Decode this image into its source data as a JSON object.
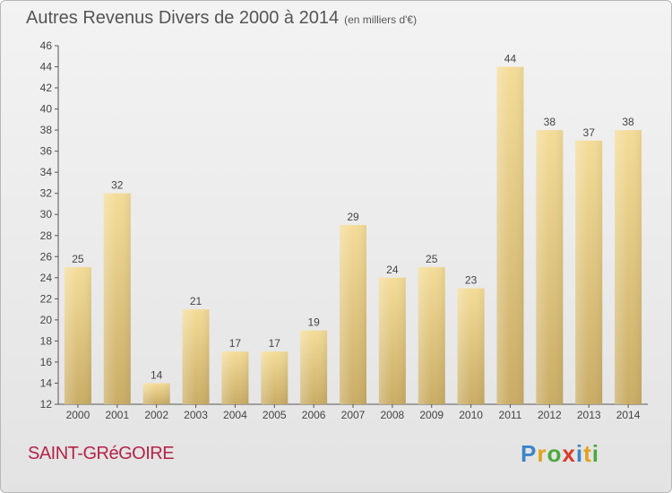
{
  "title": {
    "main": "Autres Revenus Divers de 2000 à 2014",
    "sub": "(en milliers d'€)"
  },
  "town": "SAINT-GRéGOIRE",
  "logo": {
    "text": "Proxiti",
    "letters": [
      {
        "ch": "P",
        "color": "#3a86c8"
      },
      {
        "ch": "r",
        "color": "#e2a21b"
      },
      {
        "ch": "o",
        "color": "#4aa93c"
      },
      {
        "ch": "x",
        "color": "#d93b2b"
      },
      {
        "ch": "i",
        "color": "#3a86c8"
      },
      {
        "ch": "t",
        "color": "#e2a21b"
      },
      {
        "ch": "i",
        "color": "#4aa93c"
      }
    ]
  },
  "chart_data": {
    "type": "bar",
    "title": "Autres Revenus Divers de 2000 à 2014",
    "subtitle": "(en milliers d'€)",
    "categories": [
      "2000",
      "2001",
      "2002",
      "2003",
      "2004",
      "2005",
      "2006",
      "2007",
      "2008",
      "2009",
      "2010",
      "2011",
      "2012",
      "2013",
      "2014"
    ],
    "values": [
      25,
      32,
      14,
      21,
      17,
      17,
      19,
      29,
      24,
      25,
      23,
      44,
      38,
      37,
      38
    ],
    "ylim": [
      12,
      46
    ],
    "yticks": [
      12,
      14,
      16,
      18,
      20,
      22,
      24,
      26,
      28,
      30,
      32,
      34,
      36,
      38,
      40,
      42,
      44,
      46
    ],
    "grid": false,
    "bar_color_top": "#f4dc98",
    "bar_color_bottom": "#c9ad66"
  }
}
